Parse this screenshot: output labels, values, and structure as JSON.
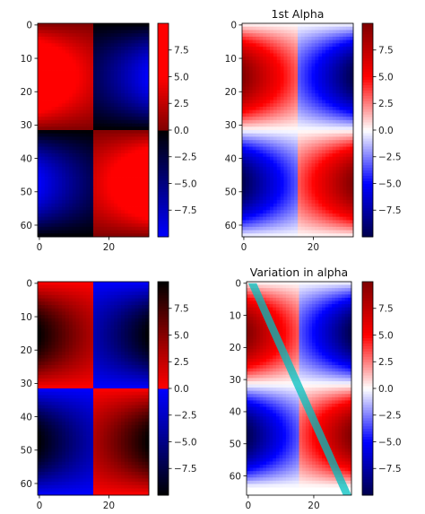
{
  "chart_data": [
    {
      "type": "heatmap",
      "title": "",
      "colormap": "red_black_blue",
      "data_shape": [
        64,
        32
      ],
      "xlim": [
        -0.5,
        31.5
      ],
      "ylim": [
        63.5,
        -0.5
      ],
      "xticks": [
        0,
        20
      ],
      "xtick_labels": [
        "0",
        "20"
      ],
      "yticks": [
        0,
        10,
        20,
        30,
        40,
        50,
        60
      ],
      "ytick_labels": [
        "0",
        "10",
        "20",
        "30",
        "40",
        "50",
        "60"
      ],
      "colorbar": {
        "range": [
          -10,
          10
        ],
        "ticks": [
          7.5,
          5.0,
          2.5,
          0.0,
          -2.5,
          -5.0,
          -7.5
        ],
        "tick_labels": [
          "7.5",
          "5.0",
          "2.5",
          "0.0",
          "−2.5",
          "−5.0",
          "−7.5"
        ]
      }
    },
    {
      "type": "heatmap",
      "title": "1st Alpha",
      "colormap": "seismic",
      "data_shape": [
        64,
        32
      ],
      "xlim": [
        -0.5,
        31.5
      ],
      "ylim": [
        63.5,
        -0.5
      ],
      "xticks": [
        0,
        20
      ],
      "xtick_labels": [
        "0",
        "20"
      ],
      "yticks": [
        0,
        10,
        20,
        30,
        40,
        50,
        60
      ],
      "ytick_labels": [
        "0",
        "10",
        "20",
        "30",
        "40",
        "50",
        "60"
      ],
      "colorbar": {
        "range": [
          -10,
          10
        ],
        "ticks": [
          7.5,
          5.0,
          2.5,
          0.0,
          -2.5,
          -5.0,
          -7.5
        ],
        "tick_labels": [
          "7.5",
          "5.0",
          "2.5",
          "0.0",
          "−2.5",
          "−5.0",
          "−7.5"
        ]
      }
    },
    {
      "type": "heatmap",
      "title": "",
      "colormap": "black_blue_red_black",
      "data_shape": [
        64,
        32
      ],
      "xlim": [
        -0.5,
        31.5
      ],
      "ylim": [
        63.5,
        -0.5
      ],
      "xticks": [
        0,
        20
      ],
      "xtick_labels": [
        "0",
        "20"
      ],
      "yticks": [
        0,
        10,
        20,
        30,
        40,
        50,
        60
      ],
      "ytick_labels": [
        "0",
        "10",
        "20",
        "30",
        "40",
        "50",
        "60"
      ],
      "colorbar": {
        "range": [
          -10,
          10
        ],
        "ticks": [
          7.5,
          5.0,
          2.5,
          0.0,
          -2.5,
          -5.0,
          -7.5
        ],
        "tick_labels": [
          "7.5",
          "5.0",
          "2.5",
          "0.0",
          "−2.5",
          "−5.0",
          "−7.5"
        ]
      }
    },
    {
      "type": "heatmap",
      "title": "Variation in alpha",
      "colormap": "seismic",
      "data_shape": [
        64,
        32
      ],
      "xlim": [
        -0.5,
        31.5
      ],
      "ylim": [
        66,
        -0.5
      ],
      "xticks": [
        0,
        20
      ],
      "xtick_labels": [
        "0",
        "20"
      ],
      "yticks": [
        0,
        10,
        20,
        30,
        40,
        50,
        60
      ],
      "ytick_labels": [
        "0",
        "10",
        "20",
        "30",
        "40",
        "50",
        "60"
      ],
      "overlay": {
        "shape": "diagonal-band",
        "color": "#00bfbf",
        "from": [
          0,
          0
        ],
        "to": [
          31.5,
          66
        ]
      },
      "colorbar": {
        "range": [
          -10,
          10
        ],
        "ticks": [
          7.5,
          5.0,
          2.5,
          0.0,
          -2.5,
          -5.0,
          -7.5
        ],
        "tick_labels": [
          "7.5",
          "5.0",
          "2.5",
          "0.0",
          "−2.5",
          "−5.0",
          "−7.5"
        ]
      }
    }
  ]
}
